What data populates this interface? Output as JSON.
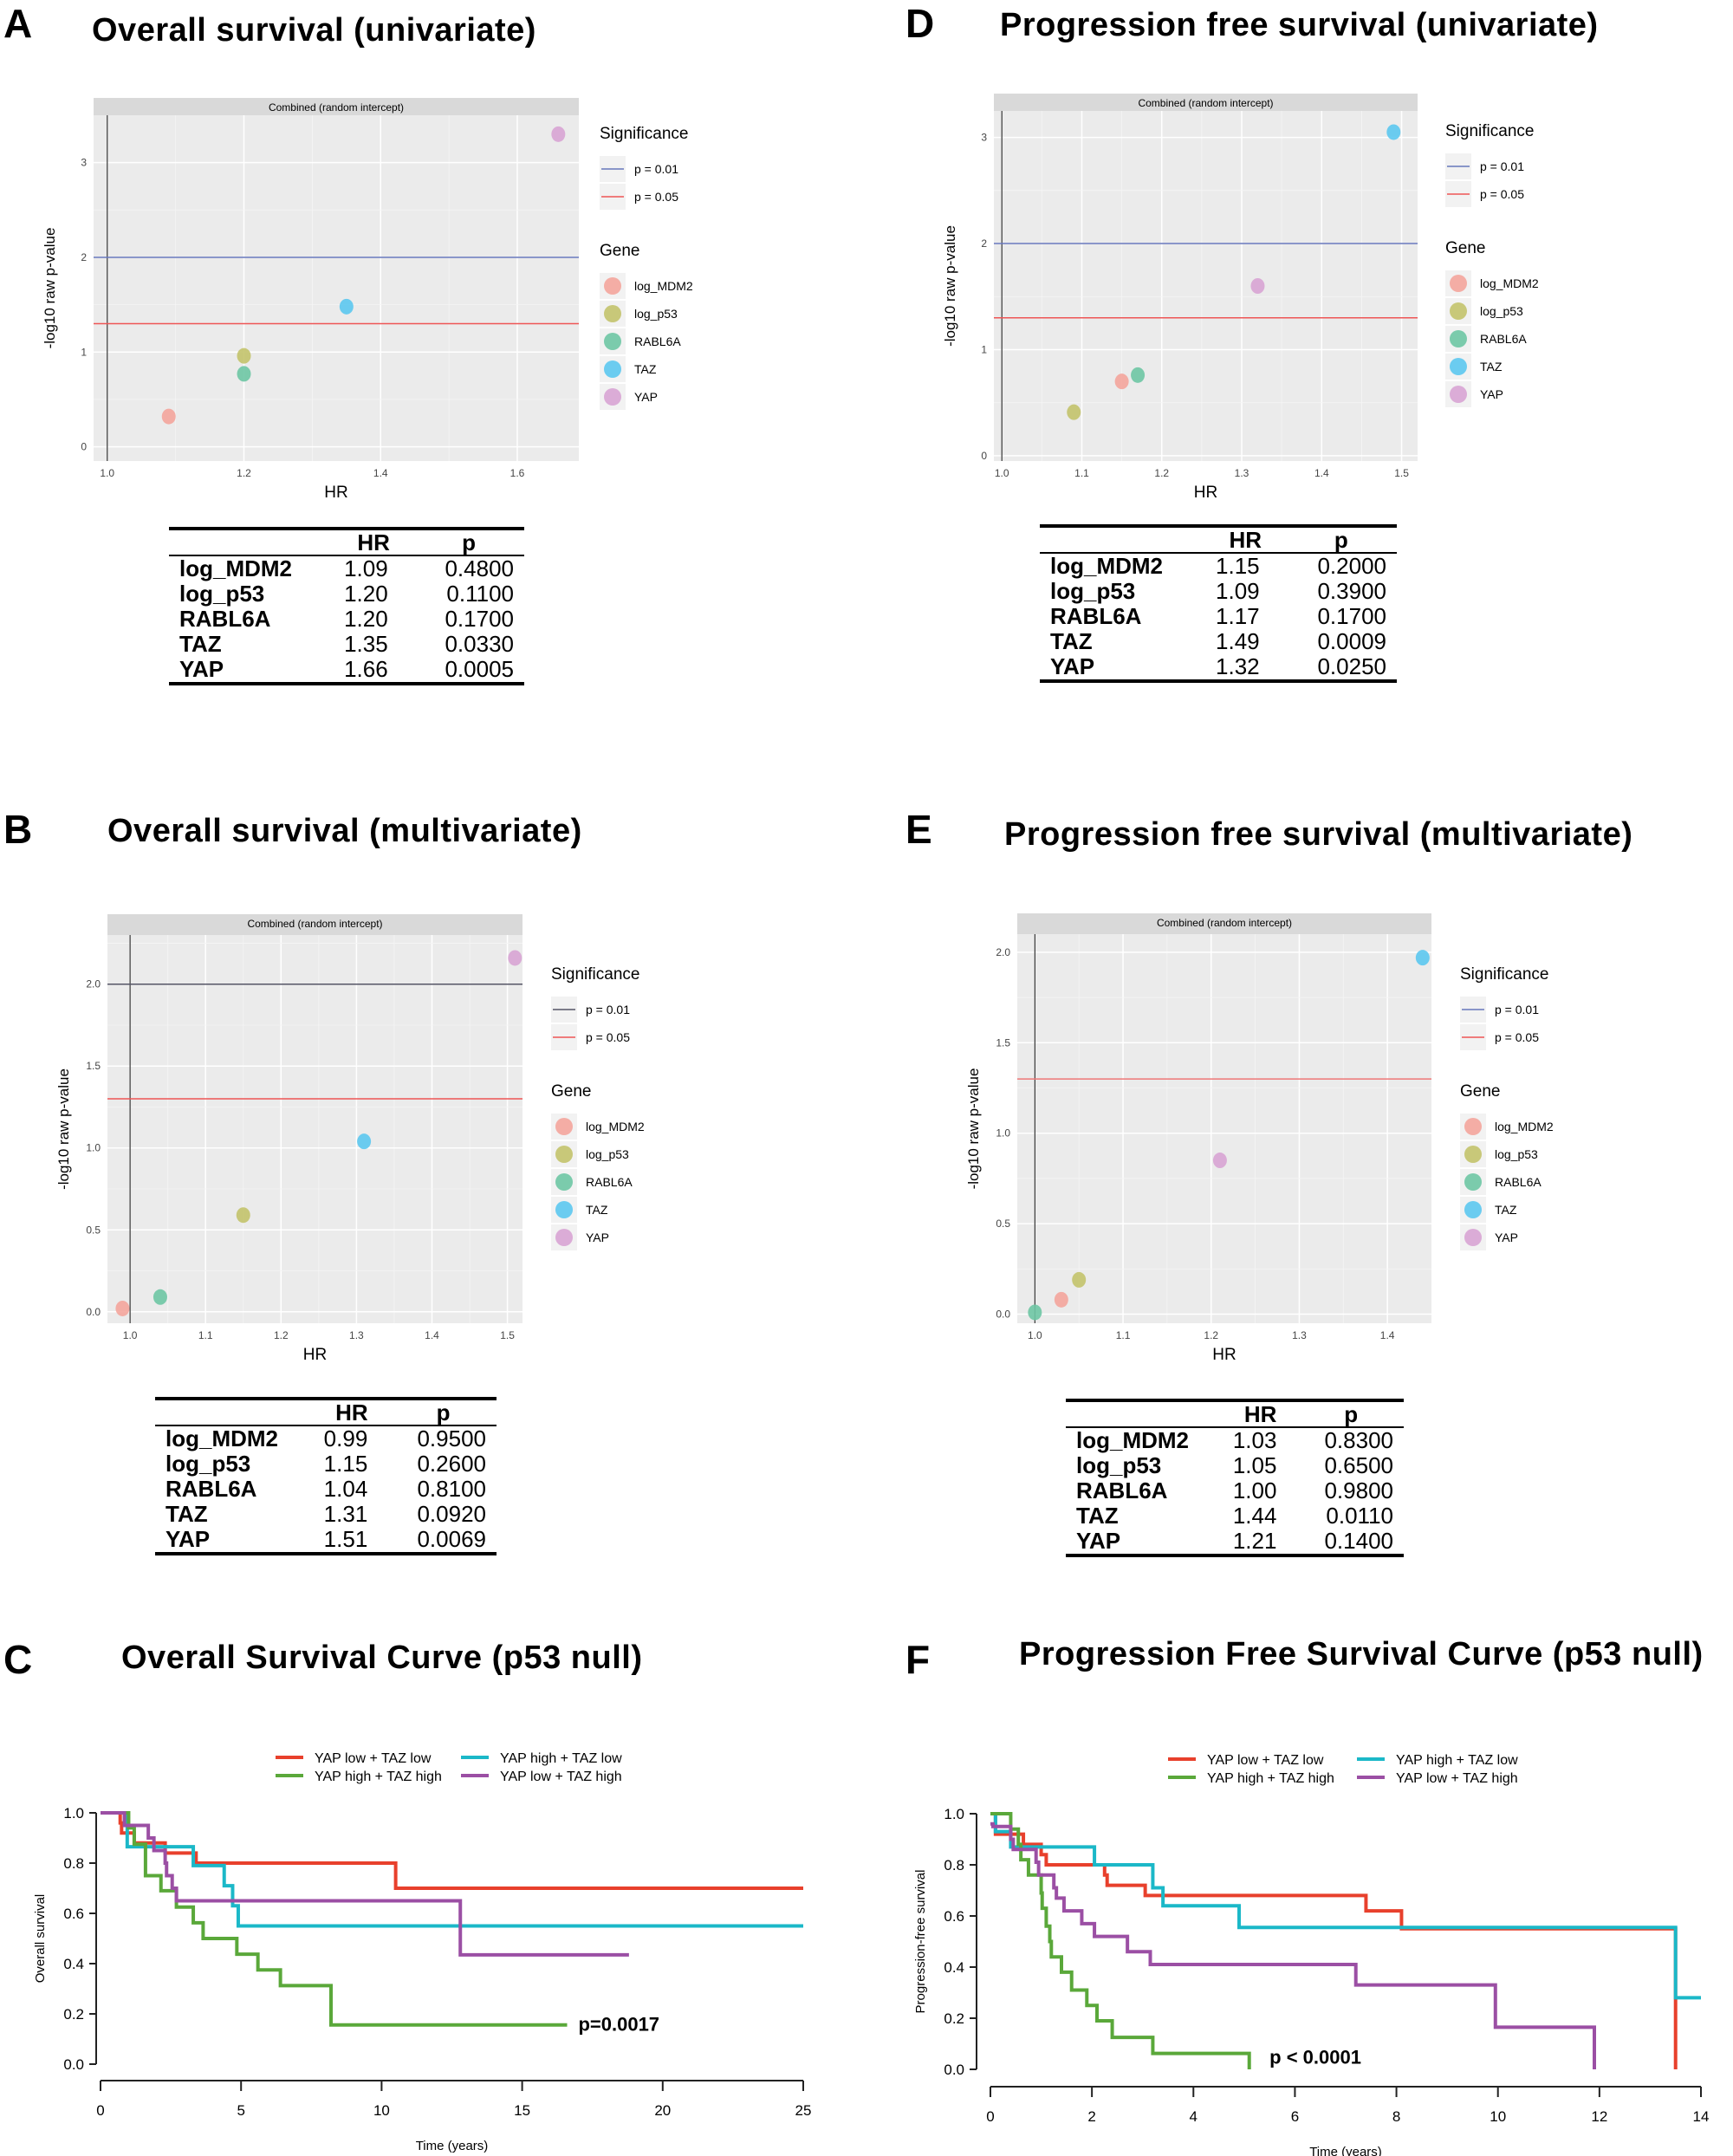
{
  "panels": {
    "A": {
      "letter": "A",
      "title": "Overall survival (univariate)"
    },
    "B": {
      "letter": "B",
      "title": "Overall survival (multivariate)"
    },
    "C": {
      "letter": "C",
      "title": "Overall Survival Curve (p53 null)"
    },
    "D": {
      "letter": "D",
      "title": "Progression free survival (univariate)"
    },
    "E": {
      "letter": "E",
      "title": "Progression free survival (multivariate)"
    },
    "F": {
      "letter": "F",
      "title": "Progression Free Survival Curve (p53 null)"
    }
  },
  "colors": {
    "log_MDM2": "#f4a59c",
    "log_p53": "#c3c36c",
    "RABL6A": "#6ec7a4",
    "TAZ": "#5cc8f0",
    "YAP": "#d8a4d4",
    "p001": "#6677bb",
    "p005": "#ee5555"
  },
  "tables": {
    "A": {
      "headers": [
        "",
        "HR",
        "p"
      ],
      "rows": [
        [
          "log_MDM2",
          "1.09",
          "0.4800"
        ],
        [
          "log_p53",
          "1.20",
          "0.1100"
        ],
        [
          "RABL6A",
          "1.20",
          "0.1700"
        ],
        [
          "TAZ",
          "1.35",
          "0.0330"
        ],
        [
          "YAP",
          "1.66",
          "0.0005"
        ]
      ]
    },
    "D": {
      "headers": [
        "",
        "HR",
        "p"
      ],
      "rows": [
        [
          "log_MDM2",
          "1.15",
          "0.2000"
        ],
        [
          "log_p53",
          "1.09",
          "0.3900"
        ],
        [
          "RABL6A",
          "1.17",
          "0.1700"
        ],
        [
          "TAZ",
          "1.49",
          "0.0009"
        ],
        [
          "YAP",
          "1.32",
          "0.0250"
        ]
      ]
    },
    "B": {
      "headers": [
        "",
        "HR",
        "p"
      ],
      "rows": [
        [
          "log_MDM2",
          "0.99",
          "0.9500"
        ],
        [
          "log_p53",
          "1.15",
          "0.2600"
        ],
        [
          "RABL6A",
          "1.04",
          "0.8100"
        ],
        [
          "TAZ",
          "1.31",
          "0.0920"
        ],
        [
          "YAP",
          "1.51",
          "0.0069"
        ]
      ]
    },
    "E": {
      "headers": [
        "",
        "HR",
        "p"
      ],
      "rows": [
        [
          "log_MDM2",
          "1.03",
          "0.8300"
        ],
        [
          "log_p53",
          "1.05",
          "0.6500"
        ],
        [
          "RABL6A",
          "1.00",
          "0.9800"
        ],
        [
          "TAZ",
          "1.44",
          "0.0110"
        ],
        [
          "YAP",
          "1.21",
          "0.1400"
        ]
      ]
    }
  },
  "chart_data": [
    {
      "id": "A",
      "type": "scatter",
      "facet": "Combined (random intercept)",
      "xlabel": "HR",
      "ylabel": "-log10 raw p-value",
      "xlim": [
        0.98,
        1.69
      ],
      "ylim": [
        -0.15,
        3.5
      ],
      "xticks": [
        "1.0",
        "1.2",
        "1.4",
        "1.6"
      ],
      "yticks": [
        "0",
        "1",
        "2",
        "3"
      ],
      "grid": true,
      "hlines": [
        {
          "y": 2,
          "label": "p = 0.01",
          "color": "#6677bb"
        },
        {
          "y": 1.3,
          "label": "p = 0.05",
          "color": "#ee5555"
        }
      ],
      "vline": 1.0,
      "legend_titles": [
        "Significance",
        "Gene"
      ],
      "points": [
        {
          "gene": "log_MDM2",
          "x": 1.09,
          "y": 0.32
        },
        {
          "gene": "log_p53",
          "x": 1.2,
          "y": 0.96
        },
        {
          "gene": "RABL6A",
          "x": 1.2,
          "y": 0.77
        },
        {
          "gene": "TAZ",
          "x": 1.35,
          "y": 1.48
        },
        {
          "gene": "YAP",
          "x": 1.66,
          "y": 3.3
        }
      ]
    },
    {
      "id": "D",
      "type": "scatter",
      "facet": "Combined (random intercept)",
      "xlabel": "HR",
      "ylabel": "-log10 raw p-value",
      "xlim": [
        0.99,
        1.52
      ],
      "ylim": [
        -0.05,
        3.25
      ],
      "xticks": [
        "1.0",
        "1.1",
        "1.2",
        "1.3",
        "1.4",
        "1.5"
      ],
      "yticks": [
        "0",
        "1",
        "2",
        "3"
      ],
      "grid": true,
      "hlines": [
        {
          "y": 2,
          "label": "p = 0.01",
          "color": "#6677bb"
        },
        {
          "y": 1.3,
          "label": "p = 0.05",
          "color": "#ee5555"
        }
      ],
      "vline": 1.0,
      "legend_titles": [
        "Significance",
        "Gene"
      ],
      "points": [
        {
          "gene": "log_MDM2",
          "x": 1.15,
          "y": 0.7
        },
        {
          "gene": "log_p53",
          "x": 1.09,
          "y": 0.41
        },
        {
          "gene": "RABL6A",
          "x": 1.17,
          "y": 0.76
        },
        {
          "gene": "TAZ",
          "x": 1.49,
          "y": 3.05
        },
        {
          "gene": "YAP",
          "x": 1.32,
          "y": 1.6
        }
      ]
    },
    {
      "id": "B",
      "type": "scatter",
      "facet": "Combined (random intercept)",
      "xlabel": "HR",
      "ylabel": "-log10 raw p-value",
      "xlim": [
        0.97,
        1.52
      ],
      "ylim": [
        -0.07,
        2.3
      ],
      "xticks": [
        "1.0",
        "1.1",
        "1.2",
        "1.3",
        "1.4",
        "1.5"
      ],
      "yticks": [
        "0.0",
        "0.5",
        "1.0",
        "1.5",
        "2.0"
      ],
      "grid": true,
      "hlines": [
        {
          "y": 2,
          "label": "p = 0.01",
          "color": "#555566"
        },
        {
          "y": 1.3,
          "label": "p = 0.05",
          "color": "#ee5555"
        }
      ],
      "vline": 1.0,
      "legend_titles": [
        "Significance",
        "Gene"
      ],
      "points": [
        {
          "gene": "log_MDM2",
          "x": 0.99,
          "y": 0.02
        },
        {
          "gene": "log_p53",
          "x": 1.15,
          "y": 0.59
        },
        {
          "gene": "RABL6A",
          "x": 1.04,
          "y": 0.09
        },
        {
          "gene": "TAZ",
          "x": 1.31,
          "y": 1.04
        },
        {
          "gene": "YAP",
          "x": 1.51,
          "y": 2.16
        }
      ]
    },
    {
      "id": "E",
      "type": "scatter",
      "facet": "Combined (random intercept)",
      "xlabel": "HR",
      "ylabel": "-log10 raw p-value",
      "xlim": [
        0.98,
        1.45
      ],
      "ylim": [
        -0.05,
        2.1
      ],
      "xticks": [
        "1.0",
        "1.1",
        "1.2",
        "1.3",
        "1.4"
      ],
      "yticks": [
        "0.0",
        "0.5",
        "1.0",
        "1.5",
        "2.0"
      ],
      "grid": true,
      "hlines": [
        {
          "y": 1.3,
          "label": "p = 0.05",
          "color": "#ee7777"
        }
      ],
      "legend_lines": [
        {
          "label": "p = 0.01",
          "color": "#6677bb"
        },
        {
          "label": "p = 0.05",
          "color": "#ee5555"
        }
      ],
      "vline": 1.0,
      "legend_titles": [
        "Significance",
        "Gene"
      ],
      "points": [
        {
          "gene": "log_MDM2",
          "x": 1.03,
          "y": 0.08
        },
        {
          "gene": "log_p53",
          "x": 1.05,
          "y": 0.19
        },
        {
          "gene": "RABL6A",
          "x": 1.0,
          "y": 0.01
        },
        {
          "gene": "TAZ",
          "x": 1.44,
          "y": 1.97
        },
        {
          "gene": "YAP",
          "x": 1.21,
          "y": 0.85
        }
      ]
    },
    {
      "id": "C",
      "type": "line",
      "xlabel": "Time (years)",
      "ylabel": "Overall survival",
      "xlim": [
        0,
        25
      ],
      "ylim": [
        0,
        1
      ],
      "xticks": [
        "0",
        "5",
        "10",
        "15",
        "20",
        "25"
      ],
      "yticks": [
        "0.0",
        "0.2",
        "0.4",
        "0.6",
        "0.8",
        "1.0"
      ],
      "annotation": "p=0.0017",
      "annotation_at": [
        17,
        0.16
      ],
      "series": [
        {
          "name": "YAP low + TAZ low",
          "color": "#e8402c",
          "steps": [
            [
              0,
              1
            ],
            [
              0.7,
              0.96
            ],
            [
              0.75,
              0.92
            ],
            [
              1.2,
              0.88
            ],
            [
              2.3,
              0.84
            ],
            [
              3.4,
              0.8
            ],
            [
              10.5,
              0.7
            ],
            [
              25,
              0.7
            ]
          ]
        },
        {
          "name": "YAP high + TAZ  low",
          "color": "#1bb8c8",
          "steps": [
            [
              0,
              1
            ],
            [
              0.95,
              0.865
            ],
            [
              3.3,
              0.79
            ],
            [
              4.4,
              0.71
            ],
            [
              4.7,
              0.63
            ],
            [
              4.9,
              0.55
            ],
            [
              25,
              0.55
            ]
          ]
        },
        {
          "name": "YAP high + TAZ high",
          "color": "#5aa83a",
          "steps": [
            [
              0,
              1
            ],
            [
              1.0,
              0.94
            ],
            [
              1.2,
              0.875
            ],
            [
              1.6,
              0.75
            ],
            [
              2.15,
              0.69
            ],
            [
              2.7,
              0.625
            ],
            [
              3.3,
              0.5625
            ],
            [
              3.65,
              0.5
            ],
            [
              4.85,
              0.4375
            ],
            [
              5.6,
              0.375
            ],
            [
              6.4,
              0.3125
            ],
            [
              8.2,
              0.156
            ],
            [
              16.6,
              0.156
            ]
          ]
        },
        {
          "name": "YAP low + TAZ high",
          "color": "#9b4fa4",
          "steps": [
            [
              0,
              1
            ],
            [
              0.85,
              0.95
            ],
            [
              1.7,
              0.9
            ],
            [
              1.9,
              0.85
            ],
            [
              2.3,
              0.8
            ],
            [
              2.35,
              0.75
            ],
            [
              2.55,
              0.7
            ],
            [
              2.7,
              0.65
            ],
            [
              12.8,
              0.435
            ],
            [
              18.8,
              0.435
            ]
          ]
        }
      ]
    },
    {
      "id": "F",
      "type": "line",
      "xlabel": "Time (years)",
      "ylabel": "Progression-free survival",
      "xlim": [
        0,
        14
      ],
      "ylim": [
        0,
        1
      ],
      "xticks": [
        "0",
        "2",
        "4",
        "6",
        "8",
        "10",
        "12",
        "14"
      ],
      "yticks": [
        "0.0",
        "0.2",
        "0.4",
        "0.6",
        "0.8",
        "1.0"
      ],
      "annotation": "p < 0.0001",
      "annotation_at": [
        5.5,
        0.05
      ],
      "series": [
        {
          "name": "YAP low + TAZ low",
          "color": "#e8402c",
          "steps": [
            [
              0,
              1
            ],
            [
              0.1,
              0.92
            ],
            [
              0.65,
              0.88
            ],
            [
              1.0,
              0.84
            ],
            [
              1.1,
              0.8
            ],
            [
              2.25,
              0.76
            ],
            [
              2.3,
              0.72
            ],
            [
              3.05,
              0.68
            ],
            [
              7.4,
              0.62
            ],
            [
              8.1,
              0.55
            ],
            [
              13.5,
              0
            ]
          ]
        },
        {
          "name": "YAP high + TAZ  low",
          "color": "#1bb8c8",
          "steps": [
            [
              0,
              1
            ],
            [
              0.1,
              0.93
            ],
            [
              0.4,
              0.87
            ],
            [
              2.05,
              0.8
            ],
            [
              3.2,
              0.71
            ],
            [
              3.4,
              0.64
            ],
            [
              4.9,
              0.555
            ],
            [
              13.5,
              0.28
            ],
            [
              14,
              0.28
            ]
          ]
        },
        {
          "name": "YAP high + TAZ high",
          "color": "#5aa83a",
          "steps": [
            [
              0,
              1
            ],
            [
              0.4,
              0.94
            ],
            [
              0.55,
              0.88
            ],
            [
              0.6,
              0.82
            ],
            [
              0.75,
              0.76
            ],
            [
              1.0,
              0.69
            ],
            [
              1.02,
              0.63
            ],
            [
              1.1,
              0.56
            ],
            [
              1.17,
              0.5
            ],
            [
              1.2,
              0.44
            ],
            [
              1.4,
              0.38
            ],
            [
              1.6,
              0.31
            ],
            [
              1.9,
              0.25
            ],
            [
              2.1,
              0.19
            ],
            [
              2.4,
              0.125
            ],
            [
              3.2,
              0.0625
            ],
            [
              5.1,
              0
            ]
          ]
        },
        {
          "name": "YAP low + TAZ high",
          "color": "#9b4fa4",
          "steps": [
            [
              0,
              0.96
            ],
            [
              0.05,
              0.95
            ],
            [
              0.4,
              0.9
            ],
            [
              0.45,
              0.86
            ],
            [
              0.9,
              0.81
            ],
            [
              0.95,
              0.76
            ],
            [
              1.25,
              0.71
            ],
            [
              1.3,
              0.67
            ],
            [
              1.45,
              0.62
            ],
            [
              1.8,
              0.57
            ],
            [
              2.05,
              0.52
            ],
            [
              2.7,
              0.46
            ],
            [
              3.15,
              0.41
            ],
            [
              7.2,
              0.33
            ],
            [
              9.95,
              0.165
            ],
            [
              11.9,
              0
            ]
          ]
        }
      ]
    }
  ]
}
